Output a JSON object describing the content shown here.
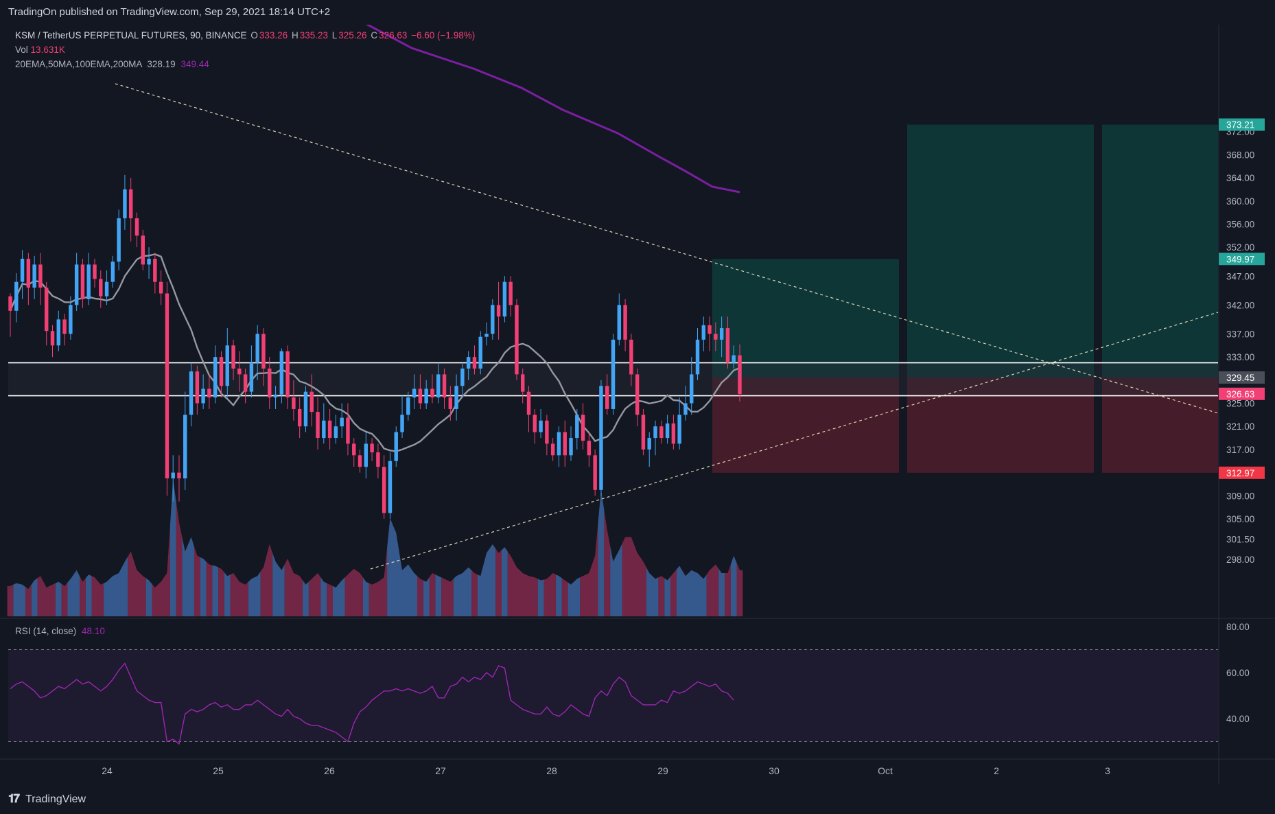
{
  "header": {
    "published_text": "TradingOn published on TradingView.com, Sep 29, 2021 18:14 UTC+2"
  },
  "legend": {
    "symbol": "KSM / TetherUS PERPETUAL FUTURES, 90, BINANCE",
    "o_label": "O",
    "o": "333.26",
    "h_label": "H",
    "h": "335.23",
    "l_label": "L",
    "l": "325.26",
    "c_label": "C",
    "c": "326.63",
    "change": "−6.60 (−1.98%)",
    "vol_label": "Vol",
    "vol": "13.631K",
    "ma_label": "20EMA,50MA,100EMA,200MA",
    "ma_val1": "328.19",
    "ma_val2": "349.44",
    "rsi_label": "RSI (14, close)",
    "rsi_val": "48.10"
  },
  "footer": {
    "brand": "TradingView"
  },
  "colors": {
    "background": "#131722",
    "up": "#42a5f5",
    "down": "#f23f74",
    "ma200": "#7b1fa2",
    "ma_grey": "#9598a1",
    "rsi": "#9c27b0",
    "target_zone": "#0f3a3a",
    "stop_zone": "#4a1d2b"
  },
  "chart_data": {
    "type": "candlestick",
    "price_axis_ticks": [
      372.0,
      368.0,
      364.0,
      360.0,
      356.0,
      352.0,
      347.0,
      342.0,
      337.0,
      333.0,
      325.0,
      321.0,
      317.0,
      309.0,
      305.0,
      301.5,
      298.0
    ],
    "price_labels": [
      {
        "value": 373.21,
        "text": "373.21",
        "color": "#26a69a"
      },
      {
        "value": 349.97,
        "text": "349.97",
        "color": "#26a69a"
      },
      {
        "value": 329.45,
        "text": "329.45",
        "color": "#4a4e59"
      },
      {
        "value": 326.63,
        "text": "326.63",
        "color": "#f23f74"
      },
      {
        "value": 312.97,
        "text": "312.97",
        "color": "#f23645"
      }
    ],
    "rsi_axis_ticks": [
      80.0,
      60.0,
      40.0
    ],
    "x_axis_labels": [
      "24",
      "25",
      "26",
      "27",
      "28",
      "29",
      "30",
      "Oct",
      "2",
      "3"
    ],
    "horizontal_levels": [
      332.0,
      326.3
    ],
    "candles": [
      [
        343.5,
        341,
        344,
        336.5
      ],
      [
        341,
        346,
        347.5,
        339
      ],
      [
        346,
        350,
        351.5,
        343
      ],
      [
        350,
        345,
        351,
        342
      ],
      [
        345,
        349,
        350.5,
        343
      ],
      [
        349,
        345,
        351,
        342
      ],
      [
        345,
        337.5,
        346,
        335
      ],
      [
        337.5,
        335,
        338.5,
        333
      ],
      [
        335,
        339.5,
        341,
        334
      ],
      [
        339.5,
        337,
        340.5,
        335
      ],
      [
        337,
        342,
        343.5,
        336
      ],
      [
        342,
        349,
        351,
        341
      ],
      [
        349,
        343,
        350,
        341.5
      ],
      [
        343,
        349,
        351,
        342
      ],
      [
        349,
        346.5,
        350,
        345
      ],
      [
        346.5,
        343.5,
        348,
        341.5
      ],
      [
        343.5,
        346,
        348,
        342
      ],
      [
        346,
        349.5,
        350.5,
        345
      ],
      [
        349.5,
        357,
        358.5,
        348
      ],
      [
        357,
        362,
        364.5,
        355
      ],
      [
        362,
        357,
        364,
        353
      ],
      [
        357,
        354,
        358,
        352
      ],
      [
        354,
        349,
        355,
        348
      ],
      [
        349,
        350,
        352,
        346.5
      ],
      [
        350,
        346,
        351,
        344
      ],
      [
        346,
        344,
        348,
        342
      ],
      [
        344,
        312,
        346,
        309
      ],
      [
        312,
        313,
        316,
        308
      ],
      [
        313,
        312,
        316,
        308
      ],
      [
        312,
        323,
        327,
        310
      ],
      [
        323,
        330.5,
        332,
        321
      ],
      [
        330.5,
        325,
        331.5,
        323
      ],
      [
        325,
        327.5,
        330,
        324
      ],
      [
        327.5,
        326,
        330,
        324
      ],
      [
        326,
        333,
        335,
        325
      ],
      [
        333,
        328,
        334,
        326
      ],
      [
        328,
        335,
        338,
        326
      ],
      [
        335,
        331,
        336,
        329
      ],
      [
        331,
        330,
        334,
        327
      ],
      [
        330,
        327,
        331,
        325
      ],
      [
        327,
        332,
        335,
        326
      ],
      [
        332,
        337,
        338.5,
        329
      ],
      [
        337,
        331,
        338,
        328
      ],
      [
        331,
        326,
        333,
        324
      ],
      [
        326,
        326.5,
        328,
        324
      ],
      [
        326.5,
        334,
        334.5,
        325
      ],
      [
        334,
        326,
        335,
        324
      ],
      [
        326,
        324,
        329,
        322
      ],
      [
        324,
        321,
        326,
        319
      ],
      [
        321,
        327,
        328,
        320
      ],
      [
        327,
        323.5,
        330,
        321
      ],
      [
        323.5,
        319,
        326,
        317
      ],
      [
        319,
        322,
        325,
        318
      ],
      [
        322,
        319,
        324,
        317
      ],
      [
        319,
        321,
        323,
        318
      ],
      [
        321,
        322.5,
        325,
        319
      ],
      [
        322.5,
        318,
        325,
        316
      ],
      [
        318,
        316,
        319,
        314
      ],
      [
        316,
        314,
        317,
        313
      ],
      [
        314,
        318,
        320,
        312
      ],
      [
        318,
        316.5,
        319,
        315
      ],
      [
        316.5,
        314,
        318,
        312
      ],
      [
        314,
        306,
        316,
        305
      ],
      [
        306,
        315,
        316.5,
        305
      ],
      [
        315,
        320,
        321,
        314
      ],
      [
        320,
        323,
        326.5,
        319
      ],
      [
        323,
        326,
        327,
        322
      ],
      [
        326,
        327.5,
        330,
        324
      ],
      [
        327.5,
        325,
        330,
        324
      ],
      [
        325,
        327.5,
        329,
        324
      ],
      [
        327.5,
        326,
        330,
        325
      ],
      [
        326,
        330,
        332,
        325
      ],
      [
        330,
        326,
        331,
        324
      ],
      [
        326,
        324,
        328,
        322
      ],
      [
        324,
        328,
        330,
        322
      ],
      [
        328,
        331,
        332,
        326
      ],
      [
        331,
        333,
        334,
        329
      ],
      [
        333,
        331,
        335,
        330
      ],
      [
        331,
        336.5,
        337.5,
        330
      ],
      [
        336.5,
        337,
        339,
        335
      ],
      [
        337,
        342,
        343,
        336
      ],
      [
        342,
        340,
        346,
        336
      ],
      [
        340,
        346,
        347,
        339
      ],
      [
        346,
        342,
        347,
        340
      ],
      [
        342,
        330,
        343,
        329
      ],
      [
        330,
        327,
        331,
        325
      ],
      [
        327,
        323,
        328,
        320
      ],
      [
        323,
        320,
        324,
        318
      ],
      [
        320,
        322,
        324,
        319
      ],
      [
        322,
        318,
        323,
        316
      ],
      [
        318,
        316,
        319,
        315
      ],
      [
        316,
        320,
        321,
        314
      ],
      [
        320,
        316,
        322,
        314
      ],
      [
        316,
        319,
        321,
        315
      ],
      [
        319,
        323,
        324,
        317
      ],
      [
        323,
        318.5,
        325,
        317
      ],
      [
        318.5,
        316,
        320,
        314
      ],
      [
        316,
        310,
        317,
        309
      ],
      [
        310,
        328,
        329,
        309
      ],
      [
        328,
        324,
        330,
        323
      ],
      [
        324,
        336,
        337,
        323
      ],
      [
        336,
        342,
        344,
        335
      ],
      [
        342,
        336,
        343,
        334
      ],
      [
        336,
        330,
        337,
        328
      ],
      [
        330,
        323,
        331,
        321
      ],
      [
        323,
        317,
        324,
        316
      ],
      [
        317,
        319,
        320,
        314
      ],
      [
        319,
        321,
        322,
        316
      ],
      [
        321,
        319,
        322,
        318
      ],
      [
        319,
        321.5,
        323,
        318
      ],
      [
        321.5,
        318,
        323,
        317
      ],
      [
        318,
        323,
        326,
        317
      ],
      [
        323,
        325,
        328,
        322
      ],
      [
        325,
        330,
        333,
        323
      ],
      [
        330,
        336,
        338,
        329
      ],
      [
        336,
        338.5,
        340,
        334
      ],
      [
        338.5,
        337,
        340,
        334
      ],
      [
        337,
        336,
        339,
        334
      ],
      [
        336,
        338,
        340,
        333
      ],
      [
        338,
        332,
        340,
        331
      ],
      [
        332,
        333.3,
        335,
        331
      ],
      [
        333.3,
        326.6,
        335.2,
        325.3
      ]
    ],
    "volumes": [
      0.21,
      0.23,
      0.22,
      0.19,
      0.25,
      0.28,
      0.2,
      0.22,
      0.24,
      0.21,
      0.26,
      0.32,
      0.24,
      0.29,
      0.27,
      0.22,
      0.24,
      0.28,
      0.3,
      0.38,
      0.45,
      0.32,
      0.28,
      0.25,
      0.2,
      0.24,
      0.3,
      0.95,
      0.65,
      0.45,
      0.55,
      0.42,
      0.4,
      0.36,
      0.35,
      0.33,
      0.28,
      0.3,
      0.24,
      0.22,
      0.26,
      0.28,
      0.34,
      0.5,
      0.38,
      0.32,
      0.4,
      0.3,
      0.28,
      0.22,
      0.26,
      0.3,
      0.24,
      0.22,
      0.2,
      0.25,
      0.29,
      0.33,
      0.3,
      0.24,
      0.22,
      0.24,
      0.27,
      0.68,
      0.58,
      0.32,
      0.36,
      0.3,
      0.26,
      0.24,
      0.3,
      0.28,
      0.26,
      0.24,
      0.28,
      0.3,
      0.34,
      0.3,
      0.28,
      0.44,
      0.5,
      0.44,
      0.48,
      0.42,
      0.34,
      0.3,
      0.28,
      0.27,
      0.25,
      0.26,
      0.3,
      0.28,
      0.25,
      0.22,
      0.26,
      0.28,
      0.3,
      0.42,
      0.88,
      0.6,
      0.38,
      0.46,
      0.55,
      0.55,
      0.44,
      0.38,
      0.3,
      0.26,
      0.28,
      0.25,
      0.3,
      0.35,
      0.28,
      0.32,
      0.3,
      0.26,
      0.32,
      0.36,
      0.3,
      0.3,
      0.42,
      0.32
    ],
    "rsi": [
      53,
      55,
      56,
      54,
      52,
      49,
      50,
      52,
      54,
      53,
      55,
      57,
      55,
      56,
      54,
      52,
      54,
      57,
      61,
      64,
      58,
      52,
      50,
      48,
      47,
      47,
      30,
      31,
      29,
      42,
      44,
      43,
      44,
      46,
      47,
      45,
      46,
      44,
      44,
      46,
      46,
      48,
      46,
      44,
      42,
      41,
      44,
      41,
      40,
      38,
      37,
      37,
      36,
      35,
      34,
      32,
      30,
      38,
      43,
      45,
      48,
      50,
      52,
      52,
      53,
      52,
      53,
      52,
      51,
      52,
      54,
      49,
      49,
      54,
      55,
      58,
      56,
      58,
      57,
      60,
      58,
      63,
      62,
      48,
      46,
      44,
      43,
      42,
      42,
      45,
      42,
      41,
      43,
      46,
      44,
      42,
      41,
      49,
      52,
      50,
      55,
      58,
      56,
      50,
      48,
      46,
      46,
      46,
      48,
      47,
      52,
      51,
      52,
      54,
      56,
      55,
      54,
      55,
      52,
      51,
      48
    ],
    "rsi_levels": [
      70,
      30
    ]
  }
}
